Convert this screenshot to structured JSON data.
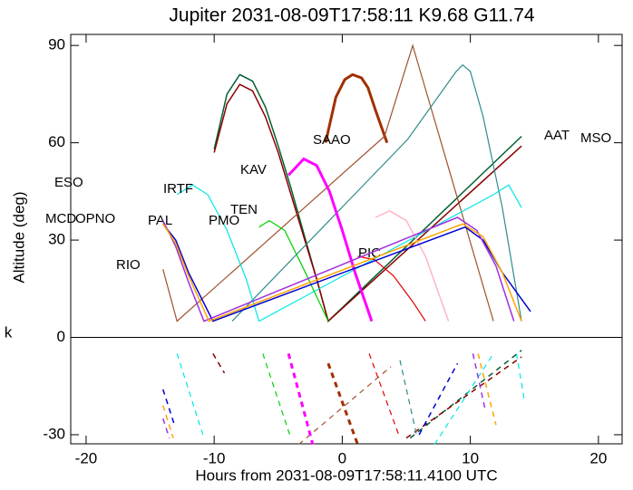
{
  "chart_data": {
    "type": "line",
    "title": "Jupiter 2031-08-09T17:58:11  K9.68  G11.74",
    "x_label": "Hours from 2031-08-09T17:58:11.4100 UTC",
    "y_label": "Altitude (deg)",
    "left_label": "k",
    "xlim": [
      -21.2,
      21.85
    ],
    "ylim": [
      -32.8,
      93.4
    ],
    "xticks": [
      -20,
      -10,
      0,
      10,
      20
    ],
    "yticks": [
      -30,
      0,
      30,
      60,
      90
    ],
    "series": [
      {
        "name": "AAT",
        "color": "#006030",
        "line_width": 1.5,
        "x": [
          -10,
          -9,
          -8,
          -7,
          -6,
          -5,
          -4,
          -3,
          -2,
          -1.1,
          14
        ],
        "values": [
          58,
          75,
          81,
          79,
          71,
          59,
          46,
          32,
          18,
          5,
          62
        ],
        "dash_x": [
          5.3,
          14
        ],
        "dash_values": [
          -31,
          -4
        ]
      },
      {
        "name": "MSO",
        "color": "#8b0000",
        "line_width": 1.5,
        "x": [
          -10,
          -9,
          -8,
          -7,
          -6,
          -5,
          -4,
          -3,
          -2,
          -1.1,
          14
        ],
        "values": [
          57,
          72,
          78,
          76,
          68,
          57,
          44,
          31,
          18,
          5,
          59
        ],
        "dash_x": [
          -10.1,
          -9.2,
          null,
          5,
          14
        ],
        "dash_values": [
          -5,
          -11,
          null,
          -31,
          -6
        ]
      },
      {
        "name": "SAAO",
        "color": "#a03000",
        "line_width": 3,
        "x": [
          -1.3,
          -0.5,
          0.2,
          0.8,
          1.5,
          2,
          2.6,
          3.5
        ],
        "values": [
          60,
          74,
          79.5,
          81,
          80,
          77,
          70,
          60
        ],
        "dash_x": [
          -1.1,
          1.2
        ],
        "dash_values": [
          -8,
          -33
        ]
      },
      {
        "name": "RIO",
        "color": "#a0522d",
        "line_width": 1.2,
        "x": [
          -14,
          -12.9,
          3.3,
          5.5,
          11.8
        ],
        "values": [
          21,
          5,
          62,
          90,
          5
        ],
        "dash_x": [
          -3.4,
          3.8
        ],
        "dash_values": [
          -33,
          -9
        ]
      },
      {
        "name": "ESO",
        "color": "#2e8b8b",
        "line_width": 1.2,
        "x": [
          -8.6,
          5.1,
          8.9,
          9.4,
          10,
          11,
          12.5,
          14
        ],
        "values": [
          5,
          61,
          82,
          84,
          82,
          68,
          40,
          5
        ],
        "dash_x": [
          4.5,
          5.8
        ],
        "dash_values": [
          -7,
          -30
        ]
      },
      {
        "name": "IRTF",
        "color": "#00e5e5",
        "line_width": 1.2,
        "x": [
          -12.9,
          -11.7,
          -10.5,
          -9,
          -7.5,
          -6.5,
          11.8,
          13,
          14
        ],
        "values": [
          44,
          47,
          44,
          33,
          18,
          5,
          44,
          47,
          40
        ],
        "dash_x": [
          -12.9,
          -10.8,
          null,
          7.2,
          11.8,
          null,
          13.6,
          14.2
        ],
        "dash_values": [
          -5,
          -31,
          null,
          -33,
          -5,
          null,
          -5,
          -19
        ]
      },
      {
        "name": "KAV",
        "color": "#ff00ff",
        "line_width": 3,
        "x": [
          -4.2,
          -3,
          -2,
          -1,
          0,
          1,
          2.3
        ],
        "values": [
          50,
          55,
          53,
          45,
          33,
          20,
          5
        ],
        "dash_x": [
          -4.2,
          -2.3
        ],
        "dash_values": [
          -5,
          -33
        ]
      },
      {
        "name": "TEN",
        "color": "#ffb6c1",
        "line_width": 1.5,
        "x": [
          2.6,
          3.7,
          5,
          6.5,
          8.3
        ],
        "values": [
          37,
          39,
          36,
          25,
          5
        ],
        "dash_x": [],
        "dash_values": []
      },
      {
        "name": "PMO",
        "color": "#00d000",
        "line_width": 1.2,
        "x": [
          -6.5,
          -5.7,
          -4.5,
          -3,
          -1.1
        ],
        "values": [
          34,
          36,
          33,
          21,
          5
        ],
        "dash_x": [
          -6.2,
          -4.1
        ],
        "dash_values": [
          -5,
          -30
        ]
      },
      {
        "name": "PIC",
        "color": "#e00000",
        "line_width": 1.2,
        "x": [
          1.2,
          2.5,
          4,
          5.5,
          6.5
        ],
        "values": [
          25,
          24,
          19,
          11,
          5
        ],
        "dash_x": [
          2.1,
          4.4
        ],
        "dash_values": [
          -5,
          -30
        ]
      },
      {
        "name": "PAL",
        "color": "#0000d0",
        "line_width": 1.5,
        "x": [
          -14,
          -13,
          -12,
          -10.1,
          9.6,
          11,
          12.5,
          14.7
        ],
        "values": [
          35,
          30,
          20,
          5,
          34,
          30,
          20,
          8
        ],
        "dash_x": [
          -14,
          -13.1,
          null,
          6,
          9
        ],
        "dash_values": [
          -16,
          -27,
          null,
          -30,
          -8
        ]
      },
      {
        "name": "MCD",
        "color": "#a030e0",
        "line_width": 1.5,
        "x": [
          -14,
          -13,
          -12,
          -10.8,
          9,
          10.5,
          12,
          13.4
        ],
        "values": [
          36,
          28,
          17,
          5,
          37,
          33,
          22,
          5
        ],
        "dash_x": [
          -14,
          -13.5,
          null,
          10.2,
          11.2
        ],
        "dash_values": [
          -25,
          -31,
          null,
          -5,
          -23
        ]
      },
      {
        "name": "OPNO",
        "color": "#ffa500",
        "line_width": 1.5,
        "x": [
          -14,
          -13,
          -12,
          -10.4,
          9.4,
          11,
          12.5,
          14
        ],
        "values": [
          35,
          29,
          19,
          5,
          35,
          31,
          20,
          5
        ],
        "dash_x": [
          -14,
          -13.2,
          null,
          10.6,
          12
        ],
        "dash_values": [
          -21,
          -31,
          null,
          -5,
          -27
        ]
      }
    ]
  }
}
